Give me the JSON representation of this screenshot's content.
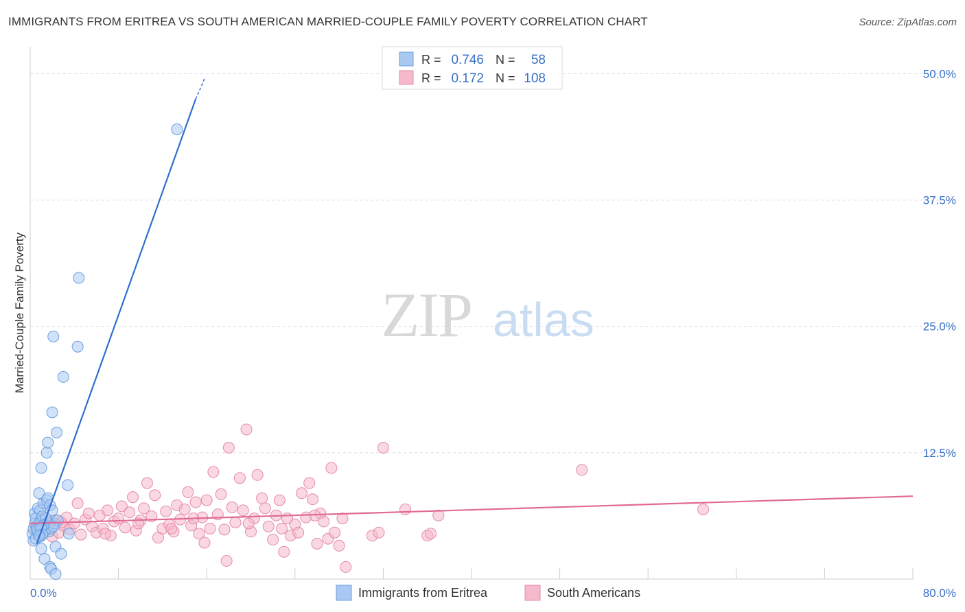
{
  "title": "IMMIGRANTS FROM ERITREA VS SOUTH AMERICAN MARRIED-COUPLE FAMILY POVERTY CORRELATION CHART",
  "source": "Source: ZipAtlas.com",
  "colors": {
    "blue_fill": "#a9c9f2",
    "blue_stroke": "#6a9fdf",
    "blue_line": "#2f6fd0",
    "pink_fill": "#f6b8cb",
    "pink_stroke": "#e58aa8",
    "pink_line": "#e06a94",
    "value_text": "#3a70c8",
    "grid": "#d9d9e3"
  },
  "legend": {
    "r_label": "R =",
    "n_label": "N =",
    "rows": [
      {
        "series": "blue",
        "r": "0.746",
        "n": "58"
      },
      {
        "series": "pink",
        "r": "0.172",
        "n": "108"
      }
    ]
  },
  "watermark": {
    "zip": "ZIP",
    "atlas": "atlas"
  },
  "chart_data": {
    "type": "scatter",
    "ylabel": "Married-Couple Family Poverty",
    "xlabel": "",
    "xlim": [
      0,
      80
    ],
    "ylim": [
      0,
      52
    ],
    "x_tick_labels": [
      "0.0%",
      "80.0%"
    ],
    "y_ticks": [
      12.5,
      25.0,
      37.5,
      50.0
    ],
    "y_tick_labels": [
      "12.5%",
      "25.0%",
      "37.5%",
      "50.0%"
    ],
    "series": [
      {
        "name": "Immigrants from Eritrea",
        "color": "blue",
        "trendline": {
          "x0": 0.6,
          "y0": 3.5,
          "x1": 15.0,
          "y1": 47.5,
          "dash_to_x": 15.8,
          "dash_to_y": 49.5
        },
        "points": [
          [
            0.2,
            4.5
          ],
          [
            0.3,
            5.0
          ],
          [
            0.3,
            3.8
          ],
          [
            0.4,
            6.5
          ],
          [
            0.4,
            5.5
          ],
          [
            0.5,
            4.0
          ],
          [
            0.5,
            6.0
          ],
          [
            0.6,
            5.2
          ],
          [
            0.7,
            4.8
          ],
          [
            0.7,
            7.0
          ],
          [
            0.8,
            5.5
          ],
          [
            0.8,
            8.5
          ],
          [
            0.9,
            4.2
          ],
          [
            0.9,
            6.8
          ],
          [
            1.0,
            5.8
          ],
          [
            1.0,
            3.0
          ],
          [
            1.0,
            11.0
          ],
          [
            1.1,
            5.0
          ],
          [
            1.1,
            6.2
          ],
          [
            1.2,
            4.6
          ],
          [
            1.2,
            7.5
          ],
          [
            1.3,
            5.4
          ],
          [
            1.3,
            2.0
          ],
          [
            1.4,
            6.0
          ],
          [
            1.4,
            4.9
          ],
          [
            1.5,
            7.8
          ],
          [
            1.5,
            12.5
          ],
          [
            1.5,
            5.1
          ],
          [
            1.6,
            13.5
          ],
          [
            1.6,
            8.0
          ],
          [
            1.7,
            4.7
          ],
          [
            1.7,
            5.6
          ],
          [
            1.8,
            7.3
          ],
          [
            1.8,
            1.2
          ],
          [
            1.9,
            5.0
          ],
          [
            1.9,
            1.0
          ],
          [
            2.0,
            16.5
          ],
          [
            2.0,
            6.8
          ],
          [
            2.1,
            24.0
          ],
          [
            2.2,
            5.5
          ],
          [
            2.3,
            3.2
          ],
          [
            2.3,
            0.5
          ],
          [
            2.4,
            14.5
          ],
          [
            2.5,
            5.8
          ],
          [
            2.8,
            2.5
          ],
          [
            3.4,
            9.3
          ],
          [
            3.5,
            4.5
          ],
          [
            4.3,
            23.0
          ],
          [
            4.4,
            29.8
          ],
          [
            2.1,
            5.2
          ],
          [
            0.9,
            5.0
          ],
          [
            1.2,
            5.3
          ],
          [
            0.6,
            4.9
          ],
          [
            1.0,
            5.1
          ],
          [
            1.1,
            4.4
          ],
          [
            3.0,
            20.0
          ],
          [
            13.3,
            44.5
          ],
          [
            0.8,
            4.3
          ]
        ]
      },
      {
        "name": "South Americans",
        "color": "pink",
        "trendline": {
          "x0": 0,
          "y0": 5.5,
          "x1": 80,
          "y1": 8.2
        },
        "points": [
          [
            0.5,
            5.0
          ],
          [
            0.8,
            4.5
          ],
          [
            1.0,
            6.0
          ],
          [
            1.2,
            5.2
          ],
          [
            1.5,
            4.8
          ],
          [
            1.8,
            5.5
          ],
          [
            2.0,
            4.2
          ],
          [
            2.3,
            5.8
          ],
          [
            2.6,
            4.6
          ],
          [
            3.0,
            5.3
          ],
          [
            3.3,
            6.1
          ],
          [
            3.6,
            4.9
          ],
          [
            4.0,
            5.5
          ],
          [
            4.3,
            7.5
          ],
          [
            4.6,
            4.4
          ],
          [
            5.0,
            5.9
          ],
          [
            5.3,
            6.5
          ],
          [
            5.6,
            5.2
          ],
          [
            6.0,
            4.6
          ],
          [
            6.3,
            6.3
          ],
          [
            6.6,
            5.0
          ],
          [
            7.0,
            6.8
          ],
          [
            7.3,
            4.3
          ],
          [
            7.6,
            5.7
          ],
          [
            8.0,
            6.0
          ],
          [
            8.3,
            7.2
          ],
          [
            8.6,
            5.1
          ],
          [
            9.0,
            6.6
          ],
          [
            9.3,
            8.1
          ],
          [
            9.6,
            4.8
          ],
          [
            10.0,
            5.8
          ],
          [
            10.3,
            7.0
          ],
          [
            10.6,
            9.5
          ],
          [
            11.0,
            6.2
          ],
          [
            11.3,
            8.3
          ],
          [
            11.6,
            4.1
          ],
          [
            12.0,
            5.0
          ],
          [
            12.3,
            6.7
          ],
          [
            12.6,
            5.4
          ],
          [
            13.0,
            4.7
          ],
          [
            13.3,
            7.3
          ],
          [
            13.6,
            5.9
          ],
          [
            14.0,
            6.9
          ],
          [
            14.3,
            8.6
          ],
          [
            14.6,
            5.3
          ],
          [
            15.0,
            7.6
          ],
          [
            15.3,
            4.5
          ],
          [
            15.6,
            6.1
          ],
          [
            16.0,
            7.8
          ],
          [
            16.3,
            5.0
          ],
          [
            16.6,
            10.6
          ],
          [
            17.0,
            6.4
          ],
          [
            17.3,
            8.4
          ],
          [
            17.6,
            4.9
          ],
          [
            18.0,
            13.0
          ],
          [
            18.3,
            7.1
          ],
          [
            18.6,
            5.6
          ],
          [
            19.0,
            10.0
          ],
          [
            19.3,
            6.8
          ],
          [
            19.6,
            14.8
          ],
          [
            20.0,
            4.7
          ],
          [
            20.3,
            6.0
          ],
          [
            20.6,
            10.3
          ],
          [
            21.0,
            8.0
          ],
          [
            21.3,
            7.0
          ],
          [
            21.6,
            5.2
          ],
          [
            22.0,
            3.9
          ],
          [
            22.3,
            6.3
          ],
          [
            22.6,
            7.8
          ],
          [
            23.0,
            2.7
          ],
          [
            23.3,
            6.0
          ],
          [
            23.6,
            4.3
          ],
          [
            24.0,
            5.4
          ],
          [
            24.3,
            4.6
          ],
          [
            24.6,
            8.5
          ],
          [
            25.0,
            6.1
          ],
          [
            25.3,
            9.5
          ],
          [
            25.6,
            7.9
          ],
          [
            26.0,
            3.5
          ],
          [
            26.3,
            6.5
          ],
          [
            26.6,
            5.7
          ],
          [
            27.0,
            4.0
          ],
          [
            27.3,
            11.0
          ],
          [
            27.6,
            4.6
          ],
          [
            28.0,
            3.3
          ],
          [
            28.3,
            6.0
          ],
          [
            28.6,
            1.2
          ],
          [
            31.0,
            4.3
          ],
          [
            31.6,
            4.6
          ],
          [
            32.0,
            13.0
          ],
          [
            34.0,
            6.9
          ],
          [
            36.0,
            4.3
          ],
          [
            36.3,
            4.5
          ],
          [
            37.0,
            6.3
          ],
          [
            50.0,
            10.8
          ],
          [
            61.0,
            6.9
          ],
          [
            0.9,
            4.6
          ],
          [
            1.4,
            5.3
          ],
          [
            2.8,
            5.6
          ],
          [
            6.8,
            4.5
          ],
          [
            9.8,
            5.5
          ],
          [
            12.8,
            5.0
          ],
          [
            15.8,
            3.6
          ],
          [
            17.8,
            1.8
          ],
          [
            19.8,
            5.5
          ],
          [
            22.8,
            5.0
          ],
          [
            25.8,
            6.3
          ],
          [
            14.8,
            6.0
          ]
        ]
      }
    ]
  }
}
